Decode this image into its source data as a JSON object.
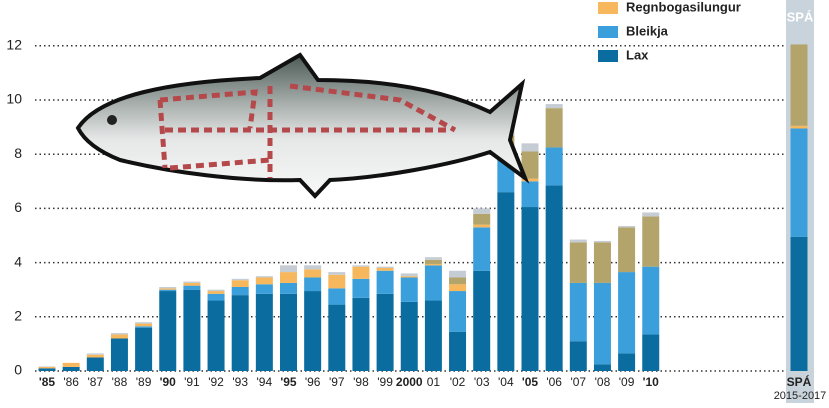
{
  "chart_data": {
    "type": "bar",
    "stacked": true,
    "categories": [
      "'85",
      "'86",
      "'87",
      "'88",
      "'89",
      "'90",
      "'91",
      "'92",
      "'93",
      "'94",
      "'95",
      "'96",
      "'97",
      "'98",
      "'99",
      "2000",
      "01",
      "'02",
      "'03",
      "'04",
      "'05",
      "'06",
      "'07",
      "'08",
      "'09",
      "'10",
      "SPÁ"
    ],
    "forecast_label": "SPÁ",
    "forecast_period": "2015-2017",
    "series": [
      {
        "name": "Lax",
        "color": "#0b6d9f",
        "values": [
          0.1,
          0.15,
          0.5,
          1.2,
          1.6,
          2.95,
          3.0,
          2.6,
          2.8,
          2.85,
          2.85,
          2.95,
          2.45,
          2.7,
          2.85,
          2.55,
          2.6,
          1.45,
          3.7,
          6.6,
          6.05,
          6.85,
          1.1,
          0.25,
          0.65,
          1.35,
          4.95
        ]
      },
      {
        "name": "Bleikja",
        "color": "#3b9fdc",
        "values": [
          0,
          0,
          0,
          0,
          0.05,
          0.05,
          0.15,
          0.25,
          0.3,
          0.35,
          0.4,
          0.5,
          0.6,
          0.7,
          0.85,
          0.9,
          1.3,
          1.5,
          1.6,
          1.3,
          0.95,
          1.4,
          2.15,
          3.0,
          3.0,
          2.5,
          4.0
        ]
      },
      {
        "name": "Regnbogasilungur",
        "color": "#f7b85d",
        "values": [
          0.05,
          0.15,
          0.1,
          0.15,
          0.1,
          0.05,
          0.1,
          0.1,
          0.25,
          0.25,
          0.4,
          0.3,
          0.5,
          0.45,
          0.1,
          0.05,
          0.05,
          0.25,
          0.1,
          0.15,
          0.1,
          0,
          0,
          0,
          0,
          0,
          0.1
        ]
      },
      {
        "color": "#b3a46b",
        "values": [
          0,
          0,
          0,
          0,
          0,
          0,
          0,
          0,
          0,
          0,
          0,
          0,
          0,
          0,
          0,
          0,
          0.15,
          0.25,
          0.4,
          0.65,
          1.0,
          1.45,
          1.5,
          1.5,
          1.65,
          1.85,
          3.0
        ]
      },
      {
        "color": "#c5ccd3",
        "values": [
          0.02,
          0,
          0.05,
          0.05,
          0.05,
          0.05,
          0.05,
          0.05,
          0.05,
          0.05,
          0.25,
          0.15,
          0.1,
          0.05,
          0.05,
          0.1,
          0.1,
          0.25,
          0.2,
          0.2,
          0.3,
          0.15,
          0.1,
          0.05,
          0.05,
          0.15,
          0
        ]
      }
    ],
    "ylim": [
      0,
      12.5
    ],
    "yticks": [
      0,
      2,
      4,
      6,
      8,
      10,
      12
    ],
    "grid": true
  }
}
